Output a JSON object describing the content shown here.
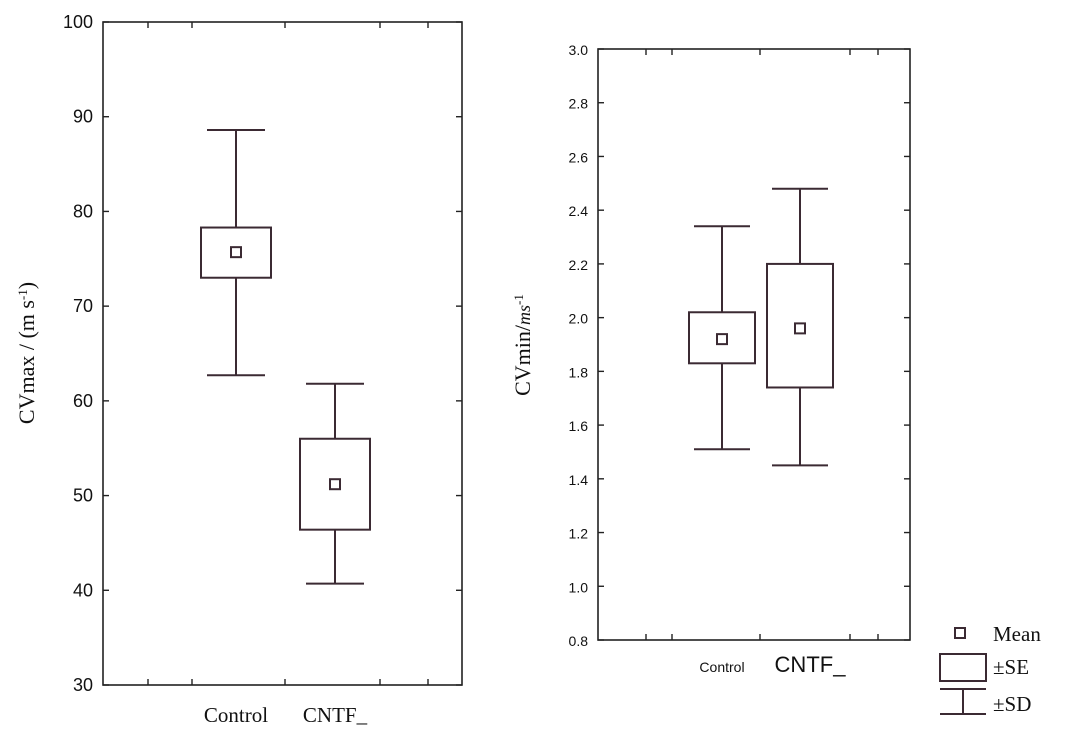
{
  "chart_data": [
    {
      "type": "box",
      "categories": [
        "Control",
        "CNTF_"
      ],
      "ylabel": "CVmax / (m s-1)",
      "ylabel_parts": {
        "main": "CVmax / (m s",
        "sup": "-1",
        "close": ")"
      },
      "ylim": [
        30,
        100
      ],
      "yticks": [
        30,
        40,
        50,
        60,
        70,
        80,
        90,
        100
      ],
      "series": [
        {
          "category": "Control",
          "mean": 75.7,
          "se_low": 73.0,
          "se_high": 78.3,
          "sd_low": 62.7,
          "sd_high": 88.6
        },
        {
          "category": "CNTF_",
          "mean": 51.2,
          "se_low": 46.4,
          "se_high": 56.0,
          "sd_low": 40.7,
          "sd_high": 61.8
        }
      ]
    },
    {
      "type": "box",
      "categories": [
        "Control",
        "CNTF_"
      ],
      "ylabel": "CVmin/ms-1",
      "ylabel_parts": {
        "main": "CVmin/",
        "italic": "ms",
        "sup": "-1"
      },
      "ylim": [
        0.8,
        3.0
      ],
      "yticks": [
        "0.8",
        "1.0",
        "1.2",
        "1.4",
        "1.6",
        "1.8",
        "2.0",
        "2.2",
        "2.4",
        "2.6",
        "2.8",
        "3.0"
      ],
      "series": [
        {
          "category": "Control",
          "mean": 1.92,
          "se_low": 1.83,
          "se_high": 2.02,
          "sd_low": 1.51,
          "sd_high": 2.34
        },
        {
          "category": "CNTF_",
          "mean": 1.96,
          "se_low": 1.74,
          "se_high": 2.2,
          "sd_low": 1.45,
          "sd_high": 2.48
        }
      ]
    }
  ],
  "legend": {
    "items": [
      {
        "symbol": "mean",
        "label": "Mean"
      },
      {
        "symbol": "se",
        "label": "±SE"
      },
      {
        "symbol": "sd",
        "label": "±SD"
      }
    ]
  }
}
